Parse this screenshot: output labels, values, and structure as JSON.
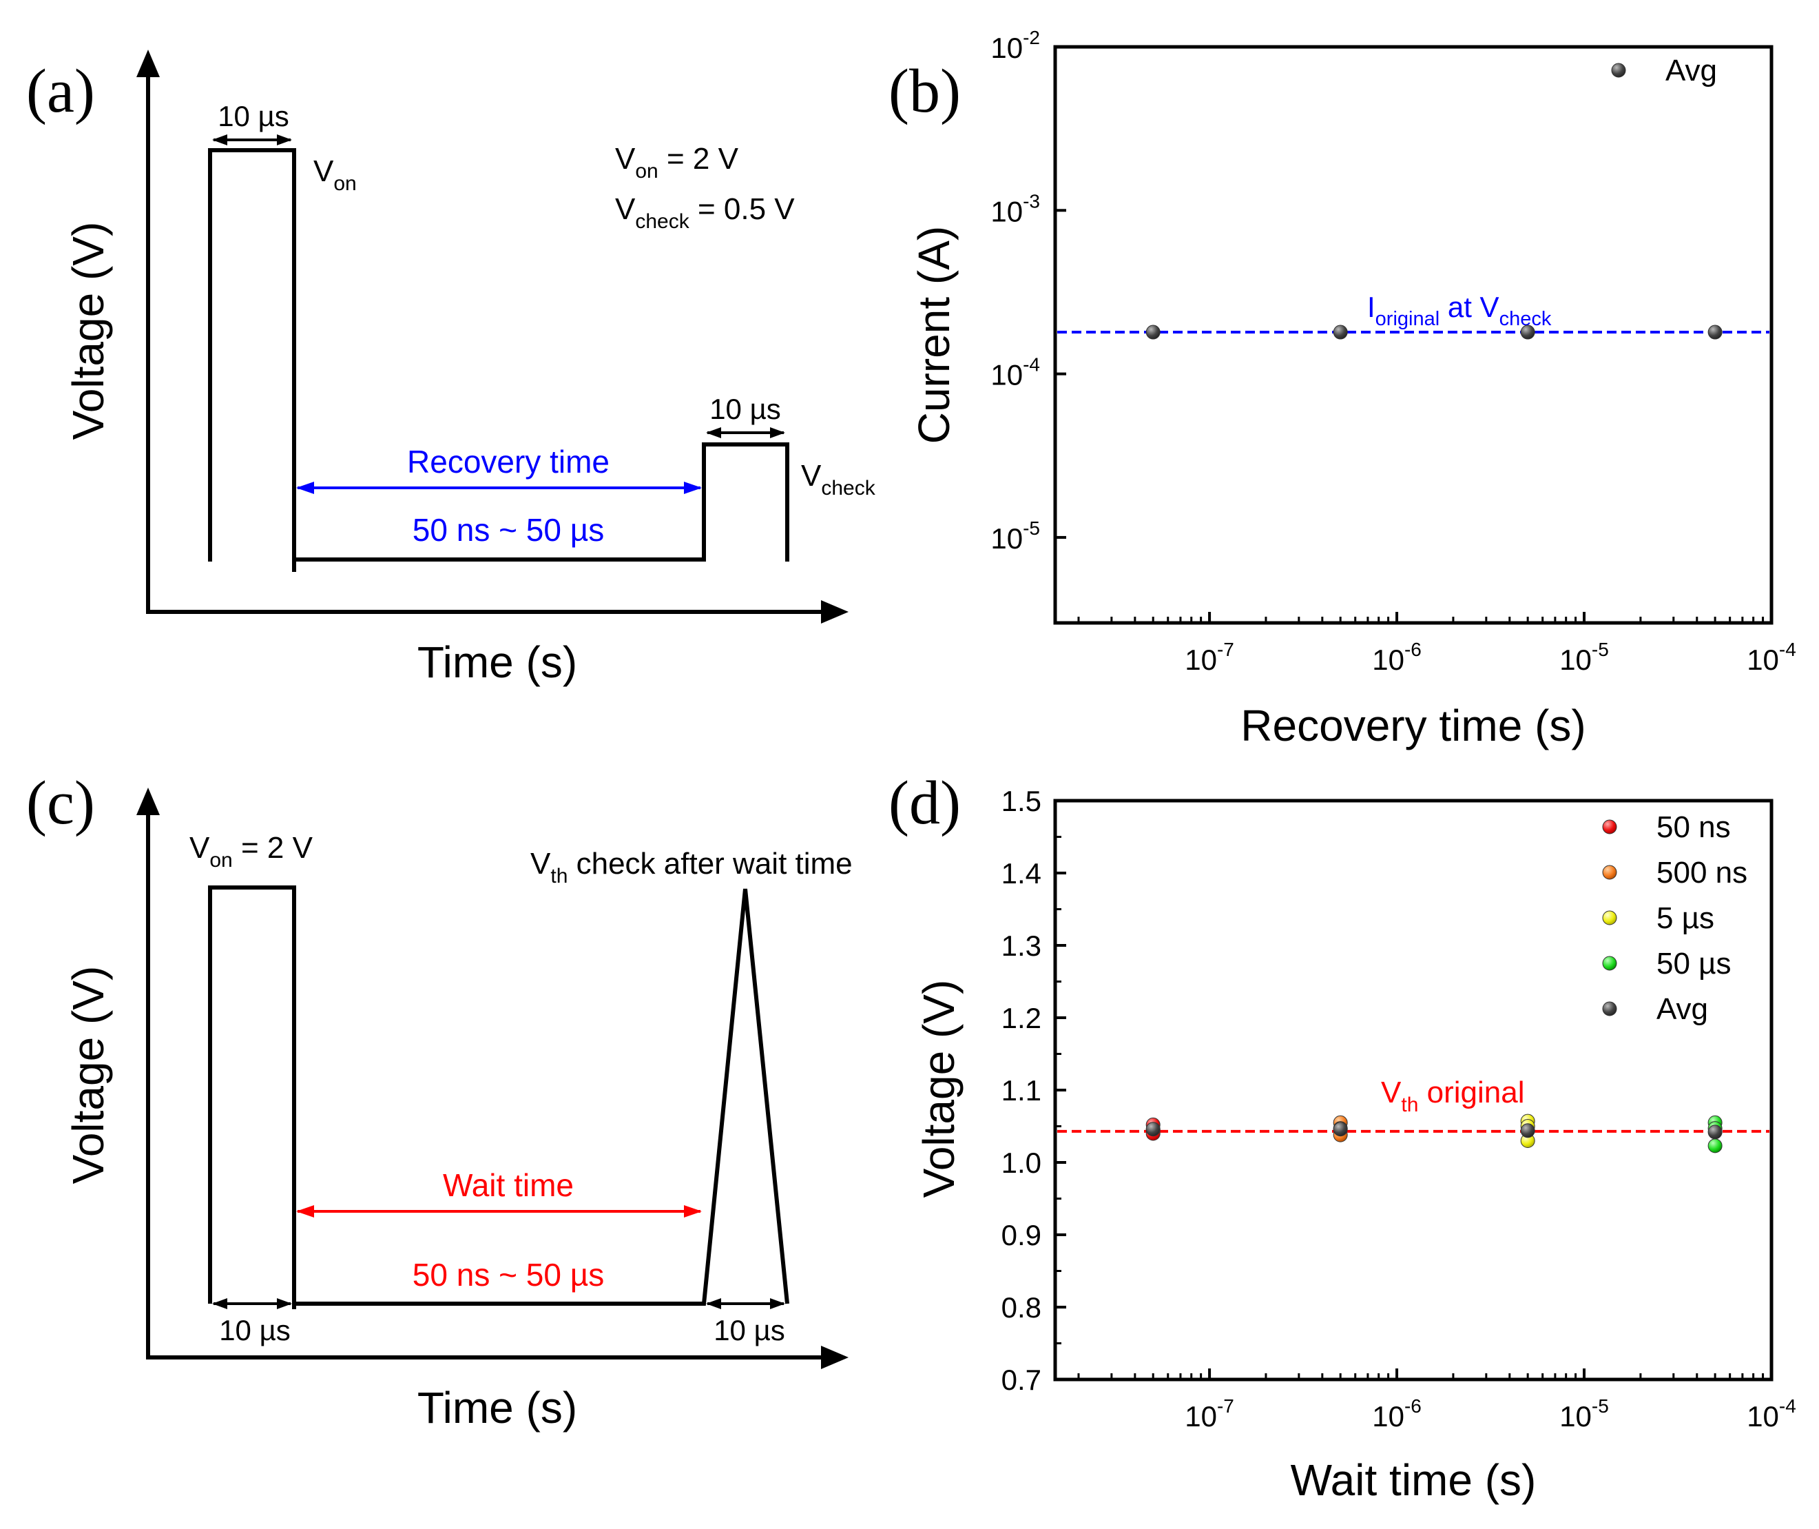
{
  "figure": {
    "colors": {
      "black": "#000000",
      "blue": "#0000ff",
      "red": "#ff0000",
      "marker_red": "#ee1111",
      "marker_orange": "#f57c1f",
      "marker_yellow": "#eeee11",
      "marker_green": "#22dd22",
      "marker_avg": "#444444"
    }
  },
  "panel_a": {
    "label": "(a)",
    "ylabel": "Voltage (V)",
    "xlabel": "Time (s)",
    "pulse1_width": "10 µs",
    "von_label": {
      "main": "V",
      "sub": "on"
    },
    "param_von": {
      "main": "V",
      "sub": "on",
      "rest": " = 2 V"
    },
    "param_vcheck": {
      "main": "V",
      "sub": "check",
      "rest": " = 0.5 V"
    },
    "recovery_label": "Recovery time",
    "range_label": "50 ns ~ 50 µs",
    "pulse2_width": "10 µs",
    "vcheck_label": {
      "main": "V",
      "sub": "check"
    }
  },
  "panel_c": {
    "label": "(c)",
    "ylabel": "Voltage (V)",
    "xlabel": "Time (s)",
    "von_label": {
      "main": "V",
      "sub": "on",
      "rest": " = 2 V"
    },
    "vth_label": {
      "main": "V",
      "sub": "th",
      "rest": " check after wait time"
    },
    "wait_label": "Wait time",
    "range_label": "50 ns ~ 50 µs",
    "pulse1_width": "10 µs",
    "pulse2_width": "10 µs"
  },
  "chart_data": [
    {
      "panel": "(b)",
      "type": "scatter",
      "xscale": "log",
      "yscale": "log",
      "xlabel": "Recovery time (s)",
      "ylabel": "Current (A)",
      "xlim": [
        1.5e-08,
        0.0001
      ],
      "ylim": [
        3e-06,
        0.01
      ],
      "x_ticks": [
        {
          "value": 1e-07,
          "base": "10",
          "exp": "-7"
        },
        {
          "value": 1e-06,
          "base": "10",
          "exp": "-6"
        },
        {
          "value": 1e-05,
          "base": "10",
          "exp": "-5"
        },
        {
          "value": 0.0001,
          "base": "10",
          "exp": "-4"
        }
      ],
      "y_ticks": [
        {
          "value": 1e-05,
          "base": "10",
          "exp": "-5"
        },
        {
          "value": 0.0001,
          "base": "10",
          "exp": "-4"
        },
        {
          "value": 0.001,
          "base": "10",
          "exp": "-3"
        },
        {
          "value": 0.01,
          "base": "10",
          "exp": "-2"
        }
      ],
      "legend": [
        {
          "name": "Avg",
          "color": "#444444"
        }
      ],
      "series": [
        {
          "name": "Avg",
          "color": "#444444",
          "x": [
            5e-08,
            5e-07,
            5e-06,
            5e-05
          ],
          "y": [
            0.00018,
            0.00018,
            0.00018,
            0.00018
          ]
        }
      ],
      "reference_line": {
        "y": 0.00018,
        "color": "#0000ff",
        "label": {
          "main": "I",
          "sub": "original",
          "mid": " at V",
          "sub2": "check"
        }
      }
    },
    {
      "panel": "(d)",
      "type": "scatter",
      "xscale": "log",
      "yscale": "linear",
      "xlabel": "Wait time (s)",
      "ylabel": "Voltage (V)",
      "xlim": [
        1.5e-08,
        0.0001
      ],
      "ylim": [
        0.7,
        1.5
      ],
      "x_ticks": [
        {
          "value": 1e-07,
          "base": "10",
          "exp": "-7"
        },
        {
          "value": 1e-06,
          "base": "10",
          "exp": "-6"
        },
        {
          "value": 1e-05,
          "base": "10",
          "exp": "-5"
        },
        {
          "value": 0.0001,
          "base": "10",
          "exp": "-4"
        }
      ],
      "y_ticks": [
        "0.7",
        "0.8",
        "0.9",
        "1.0",
        "1.1",
        "1.2",
        "1.3",
        "1.4",
        "1.5"
      ],
      "legend": [
        {
          "name": "50 ns",
          "color": "#ee1111"
        },
        {
          "name": "500 ns",
          "color": "#f57c1f"
        },
        {
          "name": "5 µs",
          "color": "#eeee11"
        },
        {
          "name": "50 µs",
          "color": "#22dd22"
        },
        {
          "name": "Avg",
          "color": "#444444"
        }
      ],
      "series": [
        {
          "name": "50 ns",
          "color": "#ee1111",
          "x": [
            5e-08,
            5e-08,
            5e-08
          ],
          "y": [
            1.052,
            1.045,
            1.04
          ]
        },
        {
          "name": "500 ns",
          "color": "#f57c1f",
          "x": [
            5e-07,
            5e-07,
            5e-07
          ],
          "y": [
            1.055,
            1.047,
            1.038
          ]
        },
        {
          "name": "5 µs",
          "color": "#eeee11",
          "x": [
            5e-06,
            5e-06,
            5e-06
          ],
          "y": [
            1.057,
            1.05,
            1.03
          ]
        },
        {
          "name": "50 µs",
          "color": "#22dd22",
          "x": [
            5e-05,
            5e-05,
            5e-05
          ],
          "y": [
            1.055,
            1.047,
            1.023
          ]
        },
        {
          "name": "Avg",
          "color": "#444444",
          "x": [
            5e-08,
            5e-07,
            5e-06,
            5e-05
          ],
          "y": [
            1.046,
            1.046,
            1.044,
            1.042
          ]
        }
      ],
      "reference_line": {
        "y": 1.043,
        "color": "#ff0000",
        "label": {
          "main": "V",
          "sub": "th",
          "rest": " original"
        }
      }
    }
  ]
}
